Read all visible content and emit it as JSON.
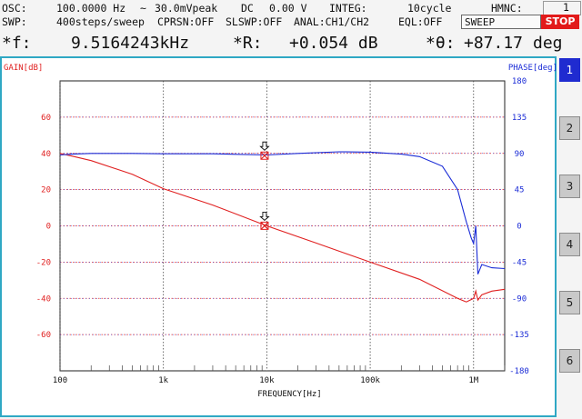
{
  "header": {
    "osc_label": "OSC:",
    "osc_freq": "100.0000 Hz",
    "ac_symbol": "~",
    "osc_ampl": "30.0mVpeak",
    "dc_label": "DC",
    "dc_value": "0.00 V",
    "integ_label": "INTEG:",
    "integ_value": "10cycle",
    "hmnc_label": "HMNC:",
    "hmnc_value": "1",
    "swp_label": "SWP:",
    "swp_value": "400steps/sweep",
    "cprsn": "CPRSN:OFF",
    "slswp": "SLSWP:OFF",
    "anal": "ANAL:CH1/CH2",
    "eql": "EQL:OFF",
    "sweep_button": "SWEEP",
    "stop_button": "STOP"
  },
  "readout": {
    "f_label": "*f:",
    "f_value": "9.5164243kHz",
    "r_label": "*R:",
    "r_value": "+0.054 dB",
    "theta_label": "*θ:",
    "theta_value": "+87.17",
    "theta_unit": "deg"
  },
  "tabs": [
    "1",
    "2",
    "3",
    "4",
    "5",
    "6"
  ],
  "active_tab": "1",
  "colors": {
    "gain": "#e02020",
    "phase": "#1a2bd6",
    "frame": "#2fa8c4",
    "active_tab": "#1f2bd0",
    "stop": "#e21a1a"
  },
  "chart_data": {
    "type": "line",
    "x_scale": "log",
    "xlabel": "FREQUENCY[Hz]",
    "xlim": [
      100,
      2000000
    ],
    "x_ticks": [
      100,
      1000,
      10000,
      100000,
      1000000
    ],
    "x_tick_labels": [
      "100",
      "1k",
      "10k",
      "100k",
      "1M"
    ],
    "left_axis": {
      "label": "GAIN[dB]",
      "lim": [
        -80,
        80
      ],
      "ticks": [
        60,
        40,
        20,
        0,
        -20,
        -40,
        -60
      ],
      "tick_labels": [
        "60",
        "40",
        "20",
        "0",
        "-20",
        "-40",
        "-60"
      ]
    },
    "right_axis": {
      "label": "PHASE[deg]",
      "lim": [
        -180,
        180
      ],
      "ticks": [
        180,
        135,
        90,
        45,
        0,
        -45,
        -90,
        -135,
        -180
      ],
      "tick_labels": [
        "180",
        "135",
        "90",
        "45",
        "0",
        "-45",
        "-90",
        "-135",
        "-180"
      ]
    },
    "grid": true,
    "series": [
      {
        "axis": "left",
        "color": "#e02020",
        "x": [
          100,
          130,
          200,
          500,
          1000,
          3000,
          10000,
          30000,
          100000,
          300000,
          700000,
          850000,
          1000000,
          1050000,
          1100000,
          1200000,
          1500000,
          2000000
        ],
        "y": [
          40,
          38.5,
          36,
          28.5,
          20.5,
          11.5,
          0,
          -9.5,
          -20,
          -29.5,
          -40,
          -42,
          -40,
          -36,
          -41,
          -38,
          -36,
          -35
        ]
      },
      {
        "axis": "right",
        "color": "#1a2bd6",
        "x": [
          100,
          130,
          200,
          500,
          1000,
          3000,
          10000,
          20000,
          50000,
          100000,
          200000,
          300000,
          500000,
          700000,
          850000,
          950000,
          1000000,
          1050000,
          1100000,
          1200000,
          1500000,
          2000000
        ],
        "y": [
          88,
          89,
          90,
          90,
          89.5,
          89.5,
          88,
          90,
          92,
          91.5,
          89,
          86,
          74,
          45,
          5,
          -15,
          -22,
          0,
          -60,
          -48,
          -52,
          -53
        ]
      }
    ],
    "markers": [
      {
        "axis": "left",
        "x": 9516.4243,
        "y": 0.054
      },
      {
        "axis": "right",
        "x": 9516.4243,
        "y": 87.17
      }
    ]
  }
}
